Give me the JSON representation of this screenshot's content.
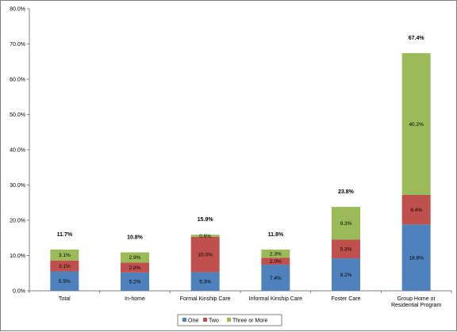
{
  "chart_data": {
    "type": "bar",
    "stacked": true,
    "categories": [
      "Total",
      "In-home",
      "Formal Kinship Care",
      "Informal Kinship Care",
      "Foster Care",
      "Group Home or Residential Program"
    ],
    "category_lines": [
      [
        "Total"
      ],
      [
        "In-home"
      ],
      [
        "Formal Kinship Care"
      ],
      [
        "Informal Kinship Care"
      ],
      [
        "Foster Care"
      ],
      [
        "Group Home or",
        "Residential Program"
      ]
    ],
    "series": [
      {
        "name": "One",
        "color": "#4f81bd",
        "values": [
          5.5,
          5.2,
          5.3,
          7.4,
          9.2,
          18.8
        ],
        "labels": [
          "5.5%",
          "5.2%",
          "5.3%",
          "7.4%",
          "9.2%",
          "18.8%"
        ]
      },
      {
        "name": "Two",
        "color": "#c0504d",
        "values": [
          3.1,
          2.8,
          10.0,
          2.0,
          5.3,
          8.4
        ],
        "labels": [
          "3.1%",
          "2.8%",
          "10.0%",
          "2.0%",
          "5.3%",
          "8.4%"
        ]
      },
      {
        "name": "Three or More",
        "color": "#9bbb59",
        "values": [
          3.1,
          2.9,
          0.6,
          2.3,
          9.3,
          40.2
        ],
        "labels": [
          "3.1%",
          "2.9%",
          "0.6%",
          "2.3%",
          "9.3%",
          "40.2%"
        ]
      }
    ],
    "totals": [
      "11.7%",
      "10.8%",
      "15.9%",
      "11.8%",
      "23.8%",
      "67.4%"
    ],
    "ylim": [
      0,
      80
    ],
    "yticks": [
      "0.0%",
      "10.0%",
      "20.0%",
      "30.0%",
      "40.0%",
      "50.0%",
      "60.0%",
      "70.0%",
      "80.0%"
    ],
    "xlabel": "",
    "ylabel": "",
    "title": "",
    "grid": false,
    "legend_position": "bottom"
  }
}
